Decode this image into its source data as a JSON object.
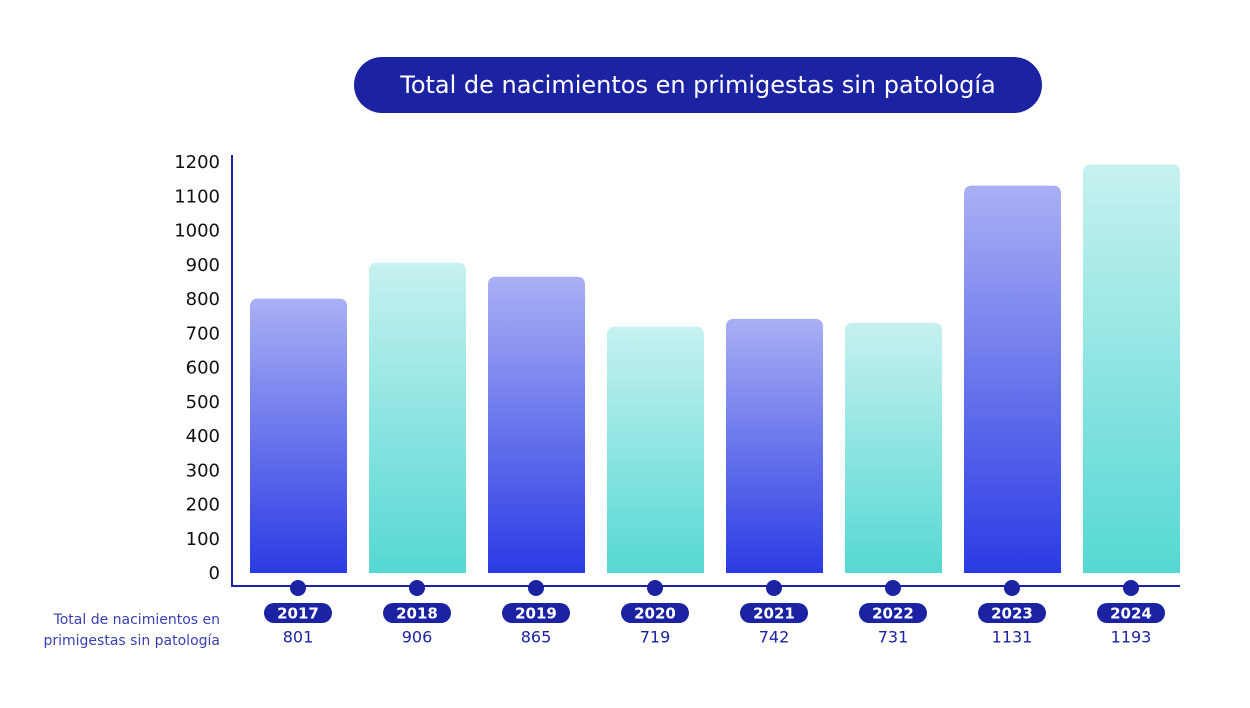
{
  "chart_data": {
    "type": "bar",
    "title": "Total de nacimientos en primigestas sin patología",
    "series_label": "Total de nacimientos en primigestas sin patología",
    "categories": [
      "2017",
      "2018",
      "2019",
      "2020",
      "2021",
      "2022",
      "2023",
      "2024"
    ],
    "values": [
      801,
      906,
      865,
      719,
      742,
      731,
      1131,
      1193
    ],
    "ylim": [
      0,
      1200
    ],
    "yticks": [
      0,
      100,
      200,
      300,
      400,
      500,
      600,
      700,
      800,
      900,
      1000,
      1100,
      1200
    ],
    "xlabel": "",
    "ylabel": "",
    "grid": false,
    "colors": {
      "axis": "#1b23a3",
      "blue_top": "#a9b0f4",
      "blue_bottom": "#2a3be4",
      "teal_top": "#c6f1f0",
      "teal_bottom": "#55d8d3",
      "text": "#1b23a3"
    }
  }
}
